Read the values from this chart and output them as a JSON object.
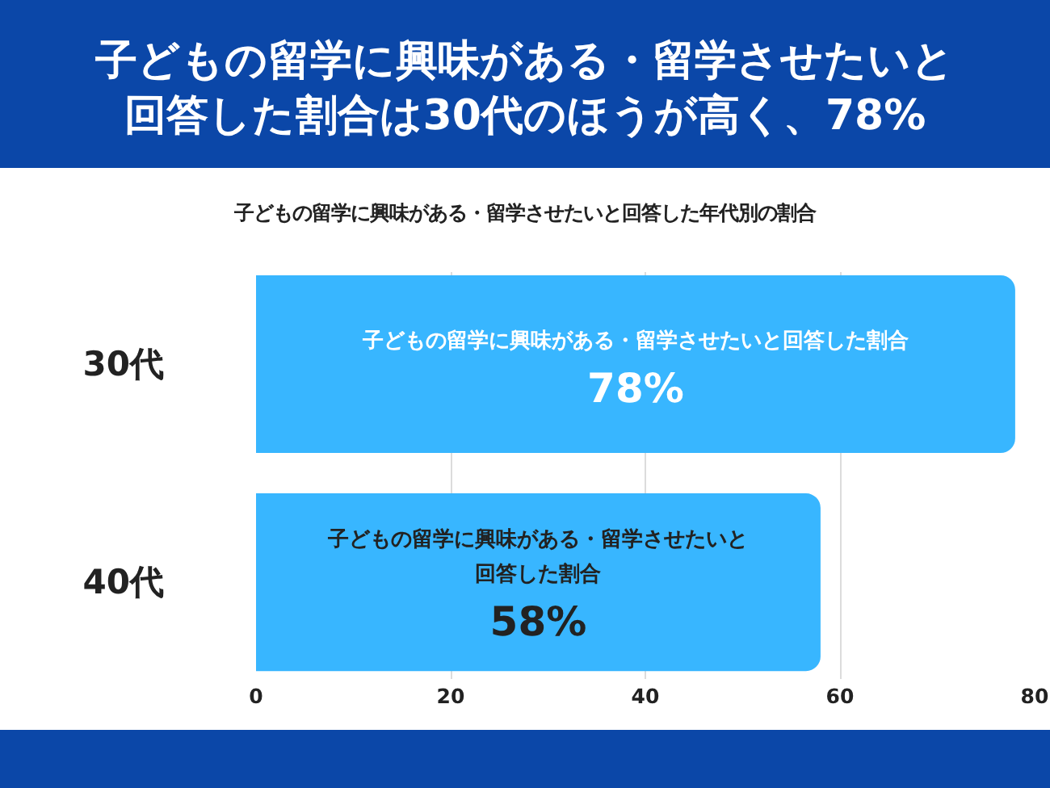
{
  "chart_data": {
    "type": "bar",
    "orientation": "horizontal",
    "title": "子どもの留学に興味がある・留学させたいと回答した割合は30代のほうが高く、78%",
    "subtitle": "子どもの留学に興味がある・留学させたいと回答した年代別の割合",
    "categories": [
      "30代",
      "40代"
    ],
    "series": [
      {
        "name": "子どもの留学に興味がある・留学させたいと回答した割合",
        "color": "#38b6ff",
        "values": [
          78,
          58
        ],
        "value_labels": [
          "78%",
          "58%"
        ]
      }
    ],
    "xlim": [
      0,
      80
    ],
    "xticks": [
      0,
      20,
      40,
      60,
      80
    ],
    "grid": "x"
  }
}
